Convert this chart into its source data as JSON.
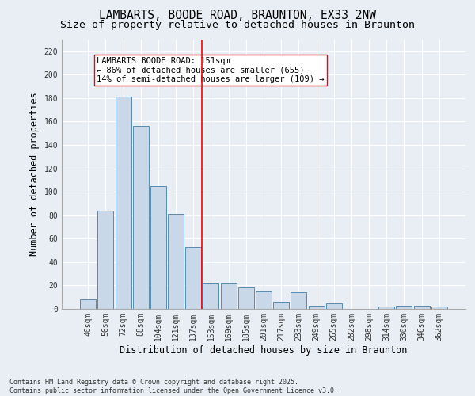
{
  "title": "LAMBARTS, BOODE ROAD, BRAUNTON, EX33 2NW",
  "subtitle": "Size of property relative to detached houses in Braunton",
  "xlabel": "Distribution of detached houses by size in Braunton",
  "ylabel": "Number of detached properties",
  "bar_color": "#c8d8e8",
  "bar_edge_color": "#5a8ab0",
  "background_color": "#e8eef4",
  "categories": [
    "40sqm",
    "56sqm",
    "72sqm",
    "88sqm",
    "104sqm",
    "121sqm",
    "137sqm",
    "153sqm",
    "169sqm",
    "185sqm",
    "201sqm",
    "217sqm",
    "233sqm",
    "249sqm",
    "265sqm",
    "282sqm",
    "298sqm",
    "314sqm",
    "330sqm",
    "346sqm",
    "362sqm"
  ],
  "values": [
    8,
    84,
    181,
    156,
    105,
    81,
    53,
    22,
    22,
    18,
    15,
    6,
    14,
    3,
    5,
    0,
    0,
    2,
    3,
    3,
    2
  ],
  "ylim": [
    0,
    230
  ],
  "yticks": [
    0,
    20,
    40,
    60,
    80,
    100,
    120,
    140,
    160,
    180,
    200,
    220
  ],
  "property_line_index": 7,
  "annotation_text": "LAMBARTS BOODE ROAD: 151sqm\n← 86% of detached houses are smaller (655)\n14% of semi-detached houses are larger (109) →",
  "footnote": "Contains HM Land Registry data © Crown copyright and database right 2025.\nContains public sector information licensed under the Open Government Licence v3.0.",
  "grid_color": "#ffffff",
  "title_fontsize": 10.5,
  "subtitle_fontsize": 9.5,
  "axis_label_fontsize": 8.5,
  "tick_fontsize": 7,
  "annotation_fontsize": 7.5,
  "footnote_fontsize": 6
}
